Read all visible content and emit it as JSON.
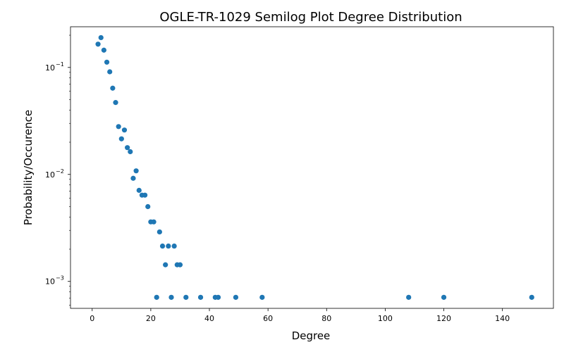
{
  "chart_data": {
    "type": "scatter",
    "title": "OGLE-TR-1029 Semilog Plot Degree Distribution",
    "xlabel": "Degree",
    "ylabel": "Probability/Occurence",
    "xscale": "linear",
    "yscale": "log",
    "xlim": [
      -7.4,
      157.4
    ],
    "ylim": [
      0.00056,
      0.24
    ],
    "grid": false,
    "marker_color": "#1f77b4",
    "x_ticks": [
      {
        "value": 0,
        "label": "0"
      },
      {
        "value": 20,
        "label": "20"
      },
      {
        "value": 40,
        "label": "40"
      },
      {
        "value": 60,
        "label": "60"
      },
      {
        "value": 80,
        "label": "80"
      },
      {
        "value": 100,
        "label": "100"
      },
      {
        "value": 120,
        "label": "120"
      },
      {
        "value": 140,
        "label": "140"
      }
    ],
    "y_ticks": [
      {
        "value": 0.001,
        "label_base": "10",
        "label_exp": "−3"
      },
      {
        "value": 0.01,
        "label_base": "10",
        "label_exp": "−2"
      },
      {
        "value": 0.1,
        "label_base": "10",
        "label_exp": "−1"
      }
    ],
    "points": [
      {
        "x": 2,
        "y": 0.165
      },
      {
        "x": 3,
        "y": 0.19
      },
      {
        "x": 4,
        "y": 0.145
      },
      {
        "x": 5,
        "y": 0.112
      },
      {
        "x": 6,
        "y": 0.091
      },
      {
        "x": 7,
        "y": 0.064
      },
      {
        "x": 8,
        "y": 0.047
      },
      {
        "x": 9,
        "y": 0.028
      },
      {
        "x": 10,
        "y": 0.0215
      },
      {
        "x": 11,
        "y": 0.026
      },
      {
        "x": 12,
        "y": 0.0178
      },
      {
        "x": 13,
        "y": 0.0163
      },
      {
        "x": 14,
        "y": 0.0092
      },
      {
        "x": 15,
        "y": 0.0108
      },
      {
        "x": 16,
        "y": 0.0071
      },
      {
        "x": 17,
        "y": 0.0064
      },
      {
        "x": 18,
        "y": 0.0064
      },
      {
        "x": 19,
        "y": 0.005
      },
      {
        "x": 20,
        "y": 0.0036
      },
      {
        "x": 21,
        "y": 0.0036
      },
      {
        "x": 22,
        "y": 0.00071
      },
      {
        "x": 23,
        "y": 0.0029
      },
      {
        "x": 24,
        "y": 0.00214
      },
      {
        "x": 25,
        "y": 0.00143
      },
      {
        "x": 26,
        "y": 0.00214
      },
      {
        "x": 27,
        "y": 0.00071
      },
      {
        "x": 28,
        "y": 0.00214
      },
      {
        "x": 29,
        "y": 0.00143
      },
      {
        "x": 30,
        "y": 0.00143
      },
      {
        "x": 32,
        "y": 0.00071
      },
      {
        "x": 37,
        "y": 0.00071
      },
      {
        "x": 42,
        "y": 0.00071
      },
      {
        "x": 43,
        "y": 0.00071
      },
      {
        "x": 49,
        "y": 0.00071
      },
      {
        "x": 58,
        "y": 0.00071
      },
      {
        "x": 108,
        "y": 0.00071
      },
      {
        "x": 120,
        "y": 0.00071
      },
      {
        "x": 150,
        "y": 0.00071
      }
    ]
  }
}
